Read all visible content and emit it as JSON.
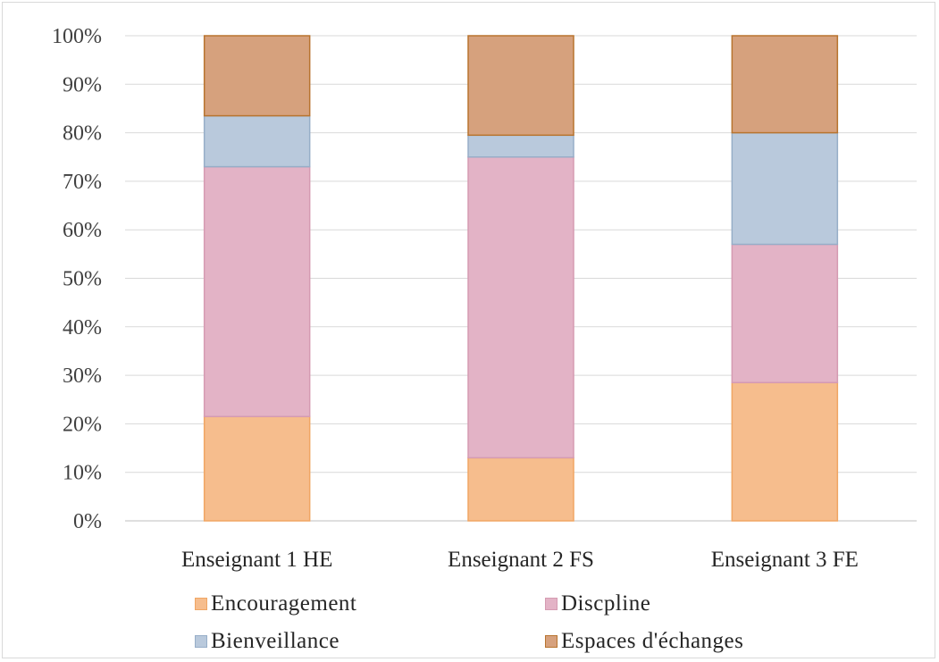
{
  "chart_data": {
    "type": "bar",
    "stacked": "percent",
    "categories": [
      "Enseignant 1 HE",
      "Enseignant 2 FS",
      "Enseignant 3 FE"
    ],
    "series": [
      {
        "name": "Encouragement",
        "values": [
          21.5,
          13,
          28.5
        ],
        "color": "#f6bd8d",
        "edge": "#f0a664"
      },
      {
        "name": "Discpline",
        "values": [
          51.5,
          62,
          28.5
        ],
        "color": "#e3b3c6",
        "edge": "#d59bb2"
      },
      {
        "name": "Bienveillance",
        "values": [
          10.5,
          4.5,
          23
        ],
        "color": "#b9c9dc",
        "edge": "#97aec8"
      },
      {
        "name": "Espaces d'échanges",
        "values": [
          16.5,
          20.5,
          20
        ],
        "color": "#d6a17d",
        "edge": "#b8742f"
      }
    ],
    "yticks": [
      "0%",
      "10%",
      "20%",
      "30%",
      "40%",
      "50%",
      "60%",
      "70%",
      "80%",
      "90%",
      "100%"
    ],
    "ylim": [
      0,
      100
    ],
    "grid": true,
    "legend_position": "bottom",
    "colors": {
      "grid": "#d9d9d9",
      "axis": "#bfbfbf"
    }
  }
}
